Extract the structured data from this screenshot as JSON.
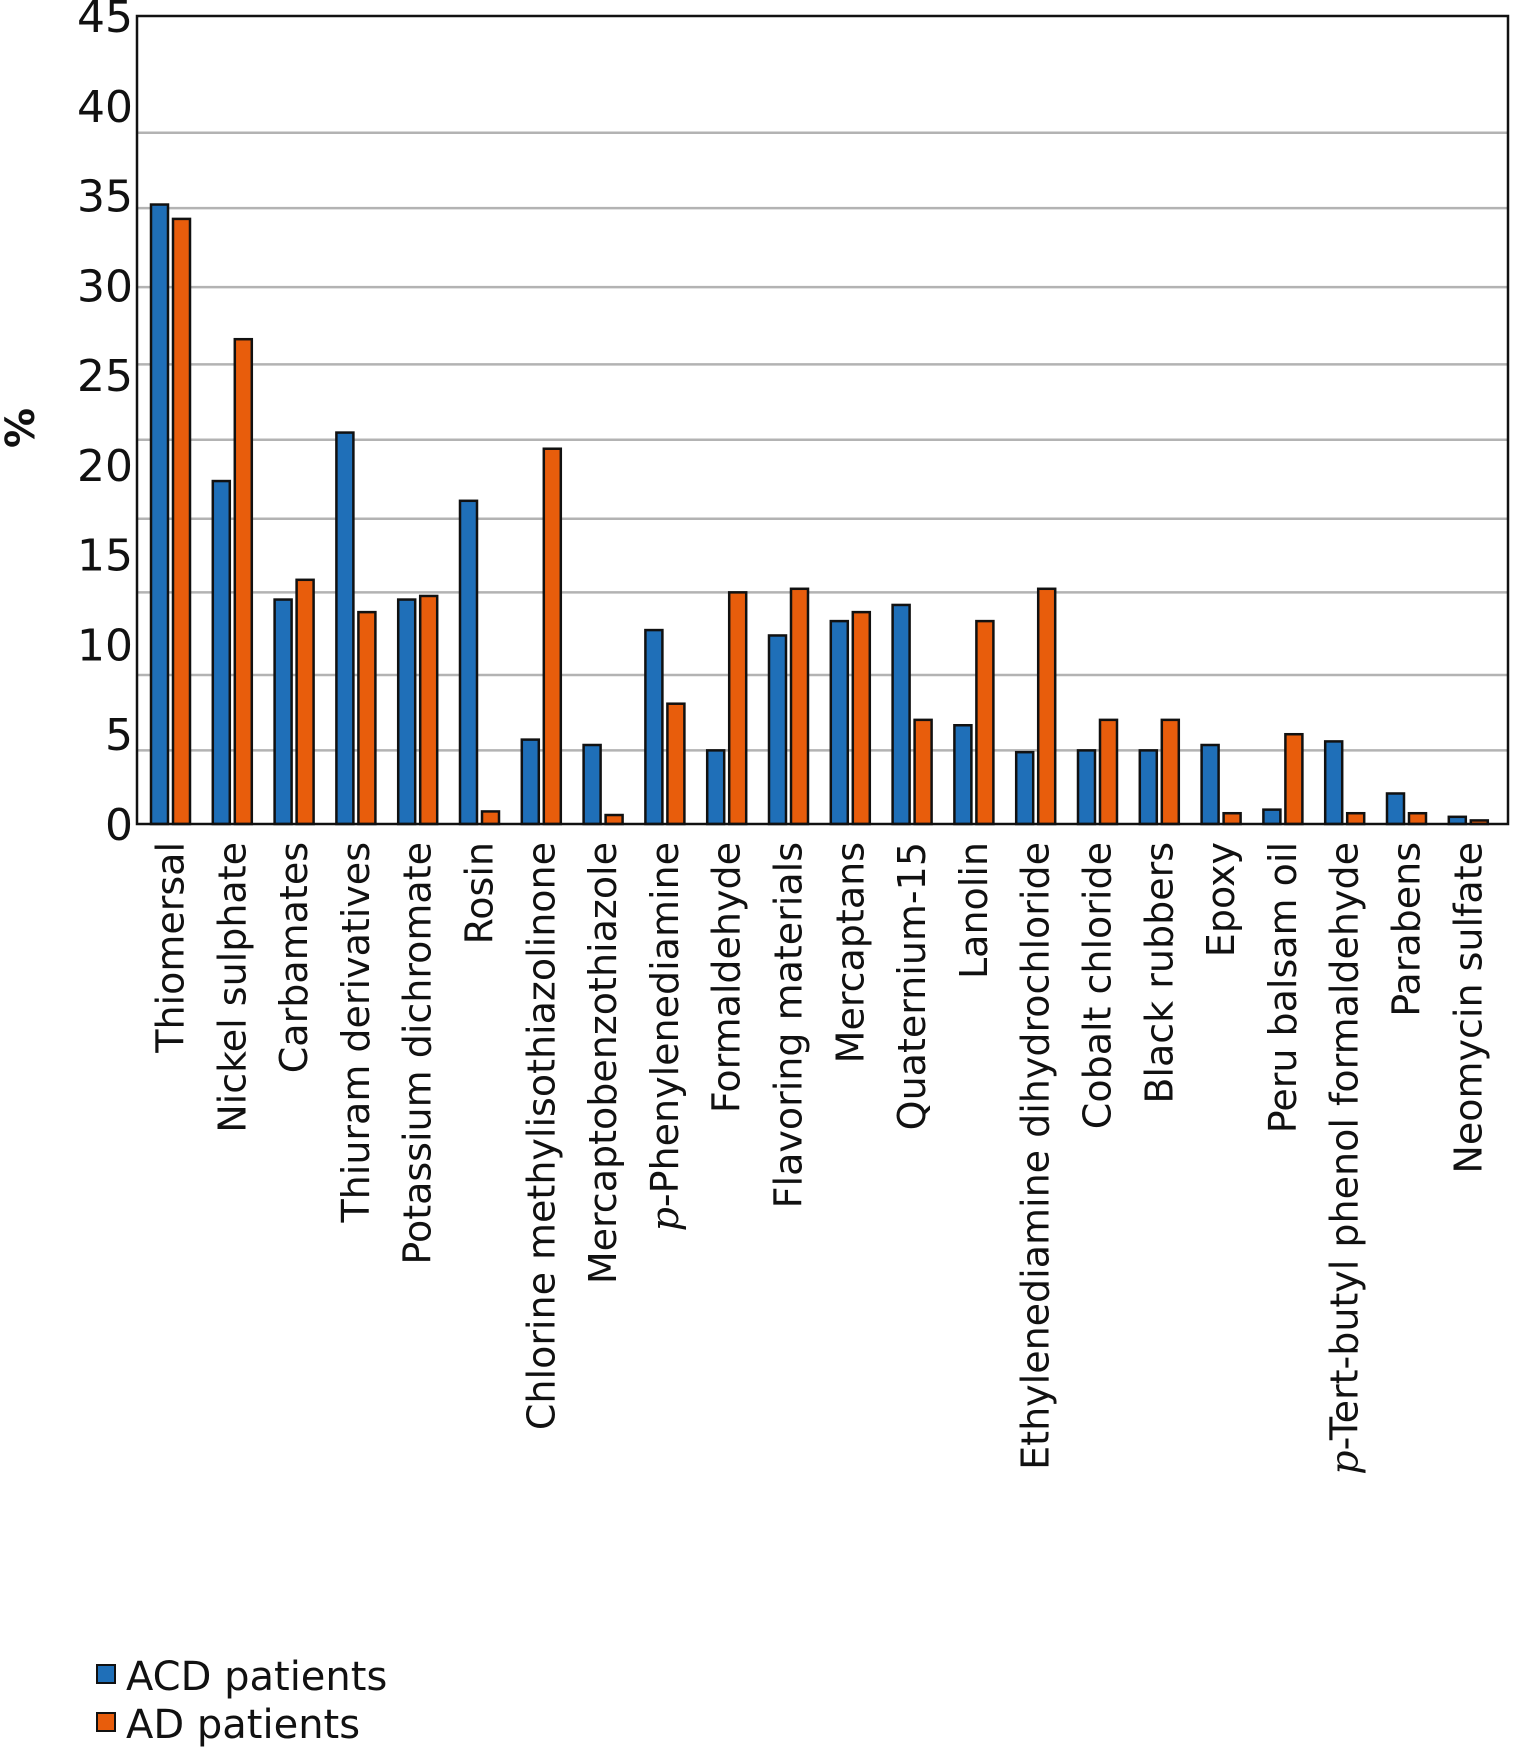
{
  "chart_data": {
    "type": "bar",
    "title": "",
    "xlabel": "",
    "ylabel": "%",
    "ylim": [
      0,
      45
    ],
    "yticks": [
      0,
      5,
      10,
      15,
      20,
      25,
      30,
      35,
      40,
      45
    ],
    "grid": true,
    "gridlines": [
      4.1,
      8.3,
      12.9,
      17,
      21.4,
      25.6,
      29.9,
      34.3,
      38.5
    ],
    "legend_position": "bottom-left",
    "categories": [
      "Thiomersal",
      "Nickel sulphate",
      "Carbamates",
      "Thiuram derivatives",
      "Potassium dichromate",
      "Rosin",
      "Chlorine methylisothiazolinone",
      "Mercaptobenzothiazole",
      "p-Phenylenediamine",
      "Formaldehyde",
      "Flavoring materials",
      "Mercaptans",
      "Quaternium-15",
      "Lanolin",
      "Ethylenediamine dihydrochloride",
      "Cobalt chloride",
      "Black rubbers",
      "Epoxy",
      "Peru balsam oil",
      "p-Tert-butyl phenol formaldehyde",
      "Parabens",
      "Neomycin sulfate"
    ],
    "series": [
      {
        "name": "ACD patients",
        "color": "#1f6fb8",
        "values": [
          34.5,
          19.1,
          12.5,
          21.8,
          12.5,
          18.0,
          4.7,
          4.4,
          10.8,
          4.1,
          10.5,
          11.3,
          12.2,
          5.5,
          4.0,
          4.1,
          4.1,
          4.4,
          0.8,
          4.6,
          1.7,
          0.4
        ]
      },
      {
        "name": "AD patients",
        "color": "#e85d0c",
        "values": [
          33.7,
          27.0,
          13.6,
          11.8,
          12.7,
          0.7,
          20.9,
          0.5,
          6.7,
          12.9,
          13.1,
          11.8,
          5.8,
          11.3,
          13.1,
          5.8,
          5.8,
          0.6,
          5.0,
          0.6,
          0.6,
          0.2
        ]
      }
    ]
  }
}
